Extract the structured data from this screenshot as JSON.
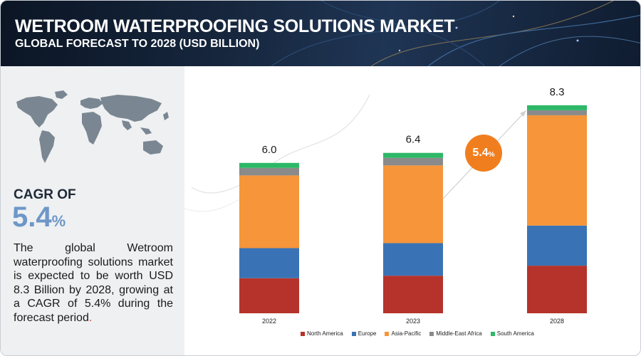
{
  "header": {
    "title": "WETROOM WATERPROOFING SOLUTIONS MARKET",
    "subtitle": "GLOBAL FORECAST TO 2028 (USD BILLION)"
  },
  "sidebar": {
    "cagr_label": "CAGR OF",
    "cagr_value": "5.4",
    "cagr_unit": "%",
    "description": "The global Wetroom waterproofing solutions market is expected to be worth USD 8.3 Billion by 2028, growing at a CAGR of 5.4% during the forecast period",
    "description_end": "."
  },
  "badge": {
    "value": "5.4",
    "unit": "%"
  },
  "colors": {
    "North America": "#b5332b",
    "Europe": "#3a73b5",
    "Asia-Pacific": "#f6953a",
    "Middle-East Africa": "#8a8a8a",
    "South America": "#2db867",
    "badge": "#f17e1e",
    "cagr_accent": "#6e97c8"
  },
  "chart_data": {
    "type": "bar",
    "stacked": true,
    "categories": [
      "2022",
      "2023",
      "2028"
    ],
    "totals": [
      "6.0",
      "6.4",
      "8.3"
    ],
    "series": [
      {
        "name": "North America",
        "values": [
          1.4,
          1.5,
          1.9
        ]
      },
      {
        "name": "Europe",
        "values": [
          1.2,
          1.3,
          1.6
        ]
      },
      {
        "name": "Asia-Pacific",
        "values": [
          2.9,
          3.1,
          4.4
        ]
      },
      {
        "name": "Middle-East Africa",
        "values": [
          0.3,
          0.3,
          0.2
        ]
      },
      {
        "name": "South America",
        "values": [
          0.2,
          0.2,
          0.2
        ]
      }
    ],
    "ylim": [
      0,
      8.3
    ],
    "legend_position": "bottom",
    "grid": false
  }
}
